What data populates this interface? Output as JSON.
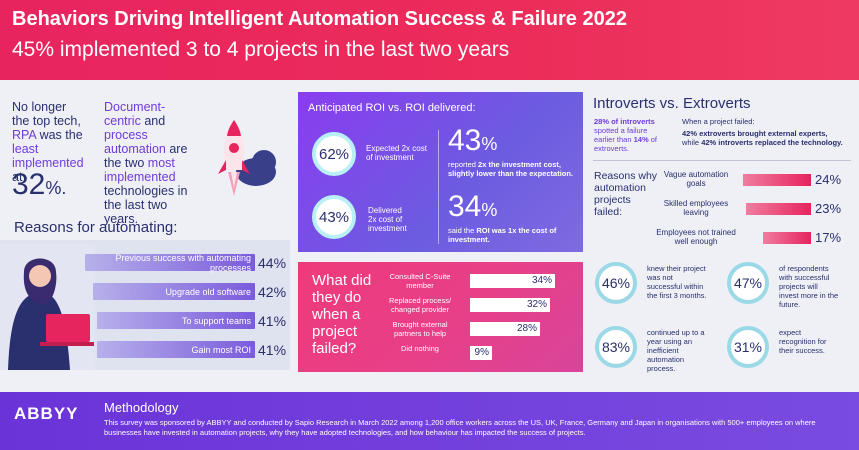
{
  "header": {
    "title": "Behaviors Driving Intelligent Automation Success & Failure 2022",
    "subtitle": "45% implemented 3 to 4 projects in the last two years"
  },
  "rpa": {
    "line1": "No longer the top tech,",
    "highlight1": "RPA",
    "line2": "was the",
    "highlight2": "least implemented",
    "line3": "at",
    "value": "32",
    "unit": "%."
  },
  "document_centric": {
    "highlight1": "Document-centric",
    "line1": "and",
    "highlight2": "process automation",
    "line2": "are the two",
    "highlight3": "most implemented",
    "line3": "technologies in the last two years."
  },
  "reasons": {
    "title": "Reasons for automating:",
    "items": [
      {
        "label": "Previous success with automating processes",
        "value": "44%",
        "fraction": 0.44
      },
      {
        "label": "Upgrade old software",
        "value": "42%",
        "fraction": 0.42
      },
      {
        "label": "To support teams",
        "value": "41%",
        "fraction": 0.41
      },
      {
        "label": "Gain most ROI",
        "value": "41%",
        "fraction": 0.41
      }
    ]
  },
  "roi": {
    "title": "Anticipated ROI vs. ROI delivered:",
    "expected_value": "62%",
    "expected_label": "Expected 2x cost of investment",
    "delivered_value": "43%",
    "delivered_label": "Delivered 2x cost of investment",
    "stat1_value": "43",
    "stat1_unit": "%",
    "stat1_desc_a": "reported",
    "stat1_desc_b": "2x the investment cost, slightly lower than the expectation.",
    "stat2_value": "34",
    "stat2_unit": "%",
    "stat2_desc_a": "said the",
    "stat2_desc_b": "ROI was 1x the cost of investment."
  },
  "what_did_they_do": {
    "question": "What did they do when a project failed?",
    "items": [
      {
        "label": "Consulted C-Suite member",
        "value": "34%",
        "fraction": 0.34
      },
      {
        "label": "Replaced process/ changed provider",
        "value": "32%",
        "fraction": 0.32
      },
      {
        "label": "Brought external partners to help",
        "value": "28%",
        "fraction": 0.28
      },
      {
        "label": "Did nothing",
        "value": "9%",
        "fraction": 0.09
      }
    ]
  },
  "introverts": {
    "title": "Introverts vs. Extroverts",
    "left_a": "28% of introverts",
    "left_b": "spotted a failure earlier than",
    "left_c": "14%",
    "left_d": "of extroverts.",
    "right_a": "When a project failed:",
    "right_b": "42% extroverts brought external experts,",
    "right_c": "while",
    "right_d": "42% introverts replaced the technology."
  },
  "failure_reasons": {
    "title": "Reasons why automation projects failed:",
    "items": [
      {
        "label": "Vague automation goals",
        "value": "24%",
        "fraction": 0.24
      },
      {
        "label": "Skilled employees leaving",
        "value": "23%",
        "fraction": 0.23
      },
      {
        "label": "Employees not trained well enough",
        "value": "17%",
        "fraction": 0.17
      }
    ]
  },
  "stats": [
    {
      "value": "46%",
      "text": "knew their project was not successful within the first 3 months."
    },
    {
      "value": "47%",
      "text": "of respondents with successful projects will invest more in the future."
    },
    {
      "value": "83%",
      "text": "continued up to a year using an inefficient automation process."
    },
    {
      "value": "31%",
      "text": "expect recognition for their success."
    }
  ],
  "footer": {
    "logo": "ABBYY",
    "methodology_title": "Methodology",
    "methodology_text": "This survey was sponsored by ABBYY and conducted by Sapio Research in March 2022 among 1,200 office workers across the US, UK, France, Germany and Japan in organisations with 500+ employees on where businesses have invested in automation projects, why they have adopted technologies, and how behaviour has impacted the success of projects."
  },
  "colors": {
    "header_pink": "#e8245f",
    "navy": "#2a2f6e",
    "purple": "#6f3bdc",
    "ring_cyan": "#9bd9e6"
  }
}
